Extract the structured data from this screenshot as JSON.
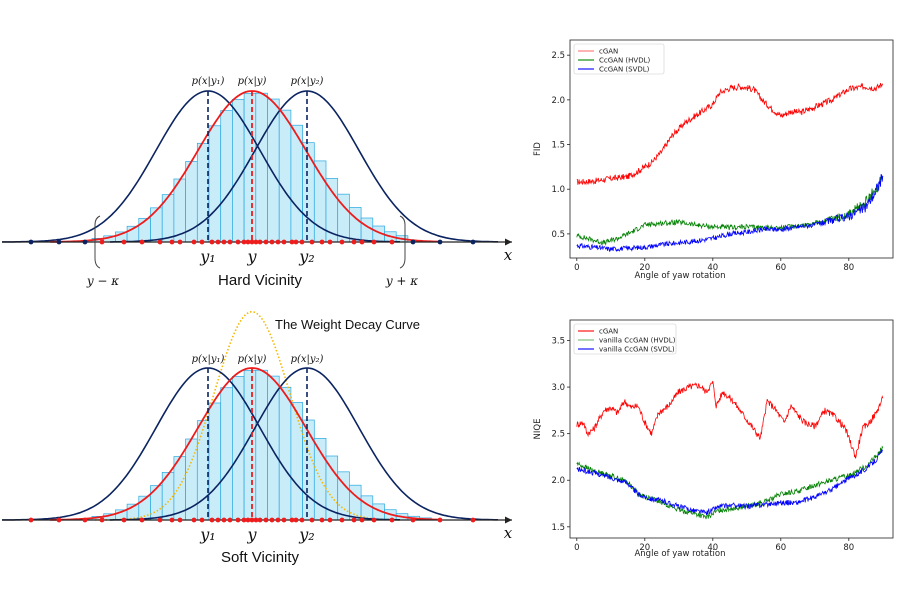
{
  "diagrams": [
    {
      "id": "hard",
      "title": "Hard Vicinity",
      "labels": {
        "p_y1": "p(x|y₁)",
        "p_y": "p(x|y)",
        "p_y2": "p(x|y₂)",
        "y1": "y₁",
        "y": "y",
        "y2": "y₂",
        "x": "x",
        "left_bound": "y − κ",
        "right_bound": "y + κ"
      }
    },
    {
      "id": "soft",
      "title": "Soft Vicinity",
      "labels": {
        "p_y1": "p(x|y₁)",
        "p_y": "p(x|y)",
        "p_y2": "p(x|y₂)",
        "y1": "y₁",
        "y": "y",
        "y2": "y₂",
        "x": "x",
        "weight_curve": "The Weight Decay Curve"
      }
    }
  ],
  "colors": {
    "navy": "#0b2461",
    "red": "#ee1c1c",
    "bar_fill": "#c9ecf9",
    "bar_stroke": "#29a8e0",
    "gold": "#f5b800",
    "series_red": "#ff0000",
    "series_green": "#008000",
    "series_blue": "#0000ff"
  },
  "chart_data": [
    {
      "type": "line",
      "title": "",
      "xlabel": "Angle of yaw rotation",
      "ylabel": "FID",
      "xlim": [
        -2,
        93
      ],
      "ylim": [
        0.23,
        2.67
      ],
      "xticks": [
        "0",
        "20",
        "40",
        "60",
        "80"
      ],
      "yticks": [
        "0.5",
        "1.0",
        "1.5",
        "2.0",
        "2.5"
      ],
      "legend": "top-left",
      "series": [
        {
          "name": "cGAN",
          "color": "#ff0000",
          "x": [
            0,
            5,
            10,
            15,
            18,
            22,
            25,
            28,
            32,
            36,
            40,
            42,
            45,
            48,
            52,
            55,
            58,
            60,
            63,
            66,
            70,
            75,
            80,
            85,
            88,
            90
          ],
          "y": [
            1.08,
            1.09,
            1.12,
            1.14,
            1.2,
            1.3,
            1.42,
            1.6,
            1.75,
            1.85,
            1.95,
            2.08,
            2.13,
            2.15,
            2.12,
            1.98,
            1.88,
            1.82,
            1.87,
            1.86,
            1.92,
            2.0,
            2.12,
            2.15,
            2.13,
            2.18
          ]
        },
        {
          "name": "CcGAN (HVDL)",
          "color": "#008000",
          "x": [
            0,
            5,
            8,
            12,
            16,
            20,
            25,
            30,
            35,
            40,
            45,
            50,
            55,
            60,
            65,
            70,
            75,
            80,
            85,
            88,
            90
          ],
          "y": [
            0.48,
            0.43,
            0.4,
            0.45,
            0.52,
            0.6,
            0.62,
            0.63,
            0.6,
            0.58,
            0.57,
            0.58,
            0.57,
            0.57,
            0.59,
            0.62,
            0.66,
            0.72,
            0.85,
            1.0,
            1.15
          ]
        },
        {
          "name": "CcGAN (SVDL)",
          "color": "#0000ff",
          "x": [
            0,
            5,
            10,
            15,
            20,
            25,
            30,
            35,
            40,
            45,
            50,
            55,
            60,
            65,
            70,
            75,
            80,
            85,
            88,
            90
          ],
          "y": [
            0.37,
            0.35,
            0.33,
            0.34,
            0.35,
            0.38,
            0.4,
            0.42,
            0.45,
            0.5,
            0.52,
            0.55,
            0.55,
            0.58,
            0.6,
            0.65,
            0.7,
            0.8,
            0.98,
            1.15
          ]
        }
      ]
    },
    {
      "type": "line",
      "title": "",
      "xlabel": "Angle of yaw rotation",
      "ylabel": "NIQE",
      "xlim": [
        -2,
        93
      ],
      "ylim": [
        1.38,
        3.72
      ],
      "xticks": [
        "0",
        "20",
        "40",
        "60",
        "80"
      ],
      "yticks": [
        "1.5",
        "2.0",
        "2.5",
        "3.0",
        "3.5"
      ],
      "legend": "top-left",
      "series": [
        {
          "name": "cGAN",
          "color": "#ff0000",
          "x": [
            0,
            2,
            3,
            5,
            8,
            10,
            12,
            14,
            16,
            18,
            20,
            22,
            24,
            27,
            30,
            33,
            36,
            38,
            40,
            41,
            43,
            46,
            50,
            54,
            56,
            58,
            61,
            63,
            65,
            67,
            70,
            73,
            76,
            79,
            82,
            84,
            86,
            88,
            90
          ],
          "y": [
            2.6,
            2.62,
            2.5,
            2.55,
            2.75,
            2.78,
            2.72,
            2.85,
            2.78,
            2.8,
            2.62,
            2.5,
            2.72,
            2.8,
            2.95,
            3.0,
            3.02,
            2.95,
            3.05,
            2.8,
            2.95,
            2.85,
            2.65,
            2.45,
            2.85,
            2.78,
            2.62,
            2.8,
            2.7,
            2.62,
            2.58,
            2.75,
            2.68,
            2.55,
            2.25,
            2.55,
            2.62,
            2.72,
            2.88
          ]
        },
        {
          "name": "vanilla CcGAN (HVDL)",
          "color": "#008000",
          "x": [
            0,
            5,
            10,
            15,
            18,
            22,
            26,
            30,
            34,
            38,
            42,
            46,
            50,
            55,
            60,
            65,
            70,
            75,
            80,
            85,
            88,
            90
          ],
          "y": [
            2.18,
            2.1,
            2.05,
            1.98,
            1.85,
            1.8,
            1.75,
            1.68,
            1.65,
            1.6,
            1.68,
            1.7,
            1.72,
            1.76,
            1.85,
            1.88,
            1.95,
            2.0,
            2.05,
            2.15,
            2.25,
            2.35
          ]
        },
        {
          "name": "vanilla CcGAN (SVDL)",
          "color": "#0000ff",
          "x": [
            0,
            5,
            10,
            15,
            18,
            22,
            26,
            30,
            34,
            38,
            42,
            46,
            50,
            55,
            60,
            65,
            70,
            75,
            80,
            85,
            88,
            90
          ],
          "y": [
            2.12,
            2.08,
            2.03,
            1.97,
            1.85,
            1.8,
            1.77,
            1.72,
            1.68,
            1.65,
            1.72,
            1.73,
            1.72,
            1.74,
            1.76,
            1.76,
            1.82,
            1.9,
            2.02,
            2.12,
            2.22,
            2.32
          ]
        }
      ]
    }
  ]
}
